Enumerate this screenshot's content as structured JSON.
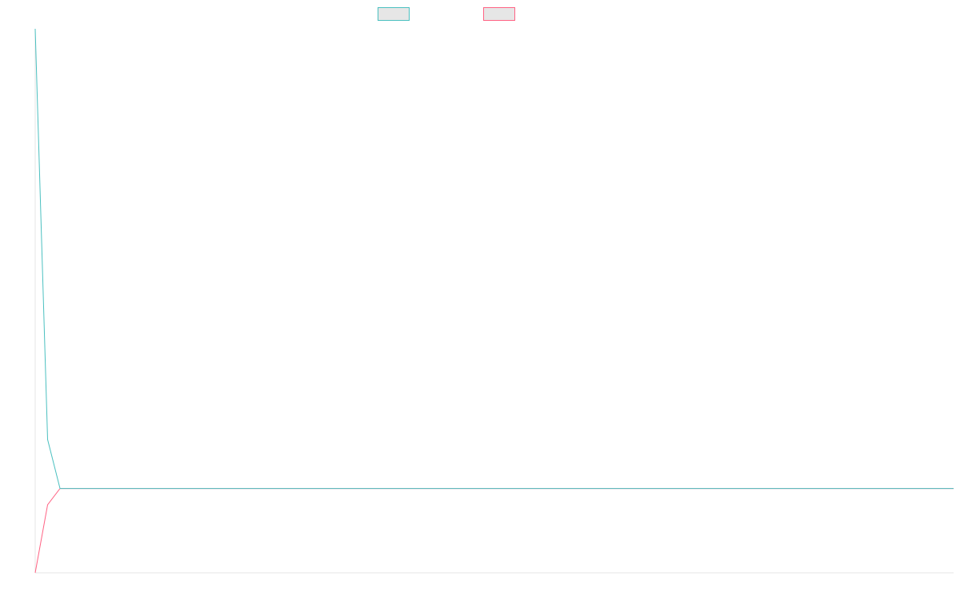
{
  "chart_data": {
    "type": "line",
    "x": [
      1,
      2,
      3,
      4,
      5,
      6,
      7,
      8,
      9,
      10,
      11,
      12,
      13,
      14,
      15,
      16,
      17,
      18,
      19,
      20,
      21,
      22,
      23,
      24,
      25,
      26,
      27,
      28,
      29,
      30,
      31,
      32,
      33,
      34,
      35,
      36,
      37,
      38,
      39,
      40,
      41,
      42,
      43,
      44,
      45,
      46,
      47,
      48,
      49,
      50,
      51,
      52,
      53,
      54,
      55,
      56,
      57,
      58,
      59,
      60,
      61,
      62,
      63,
      64,
      65,
      66,
      67,
      68,
      69,
      70,
      71,
      72,
      73,
      74,
      75
    ],
    "series": [
      {
        "name": "",
        "color": "#4bc0c0",
        "values": [
          1.0,
          0.245,
          0.155,
          0.155,
          0.155,
          0.155,
          0.155,
          0.155,
          0.155,
          0.155,
          0.155,
          0.155,
          0.155,
          0.155,
          0.155,
          0.155,
          0.155,
          0.155,
          0.155,
          0.155,
          0.155,
          0.155,
          0.155,
          0.155,
          0.155,
          0.155,
          0.155,
          0.155,
          0.155,
          0.155,
          0.155,
          0.155,
          0.155,
          0.155,
          0.155,
          0.155,
          0.155,
          0.155,
          0.155,
          0.155,
          0.155,
          0.155,
          0.155,
          0.155,
          0.155,
          0.155,
          0.155,
          0.155,
          0.155,
          0.155,
          0.155,
          0.155,
          0.155,
          0.155,
          0.155,
          0.155,
          0.155,
          0.155,
          0.155,
          0.155,
          0.155,
          0.155,
          0.155,
          0.155,
          0.155,
          0.155,
          0.155,
          0.155,
          0.155,
          0.155,
          0.155,
          0.155,
          0.155,
          0.155,
          0.155
        ]
      },
      {
        "name": "",
        "color": "#ff6384",
        "values": [
          0.0,
          0.125,
          0.155,
          0.155,
          0.155,
          0.155,
          0.155,
          0.155,
          0.155,
          0.155,
          0.155,
          0.155,
          0.155,
          0.155,
          0.155,
          0.155,
          0.155,
          0.155,
          0.155,
          0.155,
          0.155,
          0.155,
          0.155,
          0.155,
          0.155,
          0.155,
          0.155,
          0.155,
          0.155,
          0.155,
          0.155,
          0.155,
          0.155,
          0.155,
          0.155,
          0.155,
          0.155,
          0.155,
          0.155,
          0.155,
          0.155,
          0.155,
          0.155,
          0.155,
          0.155,
          0.155,
          0.155,
          0.155,
          0.155,
          0.155,
          0.155,
          0.155,
          0.155,
          0.155,
          0.155,
          0.155,
          0.155,
          0.155,
          0.155,
          0.155,
          0.155,
          0.155,
          0.155,
          0.155,
          0.155,
          0.155,
          0.155,
          0.155,
          0.155,
          0.155,
          0.155,
          0.155,
          0.155,
          0.155,
          0.155
        ]
      }
    ],
    "ylim": [
      0,
      1
    ],
    "grid": false,
    "legend": "top-center",
    "title": "",
    "xlabel": "",
    "ylabel": ""
  }
}
